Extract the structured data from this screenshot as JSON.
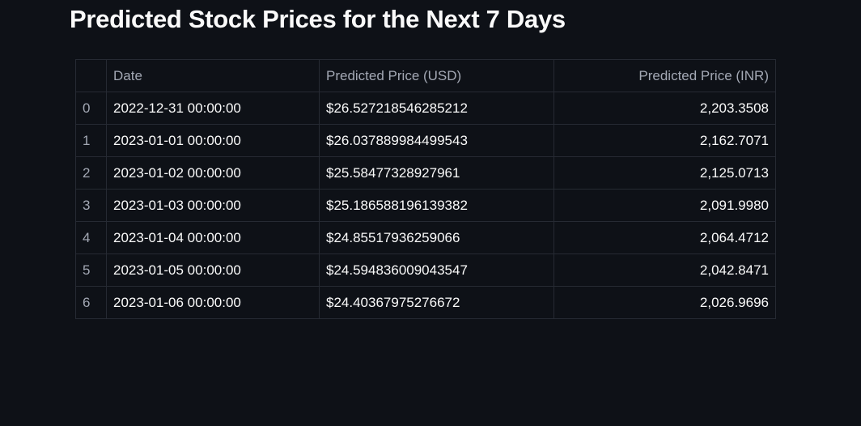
{
  "title": "Predicted Stock Prices for the Next 7 Days",
  "table": {
    "headers": {
      "index": "",
      "date": "Date",
      "usd": "Predicted Price (USD)",
      "inr": "Predicted Price (INR)"
    },
    "rows": [
      {
        "index": "0",
        "date": "2022-12-31 00:00:00",
        "usd": "$26.527218546285212",
        "inr": "2,203.3508"
      },
      {
        "index": "1",
        "date": "2023-01-01 00:00:00",
        "usd": "$26.037889984499543",
        "inr": "2,162.7071"
      },
      {
        "index": "2",
        "date": "2023-01-02 00:00:00",
        "usd": "$25.58477328927961",
        "inr": "2,125.0713"
      },
      {
        "index": "3",
        "date": "2023-01-03 00:00:00",
        "usd": "$25.186588196139382",
        "inr": "2,091.9980"
      },
      {
        "index": "4",
        "date": "2023-01-04 00:00:00",
        "usd": "$24.85517936259066",
        "inr": "2,064.4712"
      },
      {
        "index": "5",
        "date": "2023-01-05 00:00:00",
        "usd": "$24.594836009043547",
        "inr": "2,042.8471"
      },
      {
        "index": "6",
        "date": "2023-01-06 00:00:00",
        "usd": "$24.40367975276672",
        "inr": "2,026.9696"
      }
    ]
  },
  "colors": {
    "background": "#0e1117",
    "text": "#fafafa",
    "muted_text": "#a3a8b4",
    "border": "#262a33"
  }
}
